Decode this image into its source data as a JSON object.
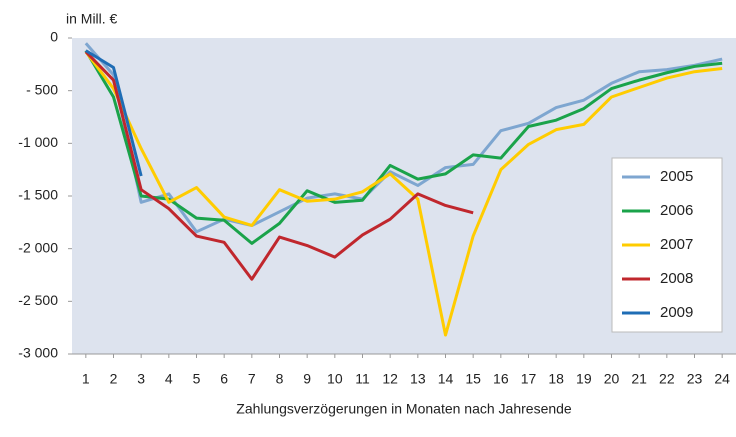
{
  "chart_data": {
    "type": "line",
    "y_unit_label": "in Mill. €",
    "xlabel": "Zahlungsverzögerungen in Monaten nach Jahresende",
    "x": [
      1,
      2,
      3,
      4,
      5,
      6,
      7,
      8,
      9,
      10,
      11,
      12,
      13,
      14,
      15,
      16,
      17,
      18,
      19,
      20,
      21,
      22,
      23,
      24
    ],
    "xlim": [
      0.5,
      24.5
    ],
    "xticks": [
      1,
      2,
      3,
      4,
      5,
      6,
      7,
      8,
      9,
      10,
      11,
      12,
      13,
      14,
      15,
      16,
      17,
      18,
      19,
      20,
      21,
      22,
      23,
      24
    ],
    "ylim": [
      -3000,
      0
    ],
    "yticks": [
      {
        "value": -3000,
        "label": "-3 000"
      },
      {
        "value": -2500,
        "label": "-2 500"
      },
      {
        "value": -2000,
        "label": "-2 000"
      },
      {
        "value": -1500,
        "label": "-1 500"
      },
      {
        "value": -1000,
        "label": "-1 000"
      },
      {
        "value": -500,
        "label": "- 500"
      },
      0
    ],
    "grid": false,
    "background": "#dde3ee",
    "legend": "right",
    "series": [
      {
        "name": "2005",
        "color": "#7ea6d0",
        "values": [
          -50,
          -350,
          -1560,
          -1480,
          -1840,
          -1720,
          -1780,
          -1650,
          -1520,
          -1480,
          -1530,
          -1270,
          -1400,
          -1230,
          -1200,
          -880,
          -810,
          -660,
          -590,
          -430,
          -320,
          -300,
          -260,
          -200
        ]
      },
      {
        "name": "2006",
        "color": "#1aa34a",
        "values": [
          -120,
          -560,
          -1500,
          -1530,
          -1710,
          -1730,
          -1950,
          -1760,
          -1450,
          -1560,
          -1540,
          -1210,
          -1340,
          -1290,
          -1110,
          -1140,
          -840,
          -780,
          -670,
          -480,
          -400,
          -330,
          -270,
          -240
        ]
      },
      {
        "name": "2007",
        "color": "#ffcc00",
        "values": [
          -130,
          -480,
          -1050,
          -1560,
          -1420,
          -1700,
          -1780,
          -1440,
          -1550,
          -1530,
          -1460,
          -1290,
          -1530,
          -2820,
          -1880,
          -1250,
          -1010,
          -870,
          -820,
          -560,
          -470,
          -380,
          -320,
          -290
        ]
      },
      {
        "name": "2008",
        "color": "#c0272d",
        "values": [
          -130,
          -400,
          -1440,
          -1620,
          -1880,
          -1940,
          -2290,
          -1890,
          -1970,
          -2080,
          -1870,
          -1720,
          -1480,
          -1590,
          -1660,
          null,
          null,
          null,
          null,
          null,
          null,
          null,
          null,
          null
        ]
      },
      {
        "name": "2009",
        "color": "#1f6db5",
        "values": [
          -120,
          -280,
          -1310,
          null,
          null,
          null,
          null,
          null,
          null,
          null,
          null,
          null,
          null,
          null,
          null,
          null,
          null,
          null,
          null,
          null,
          null,
          null,
          null,
          null
        ]
      }
    ]
  }
}
